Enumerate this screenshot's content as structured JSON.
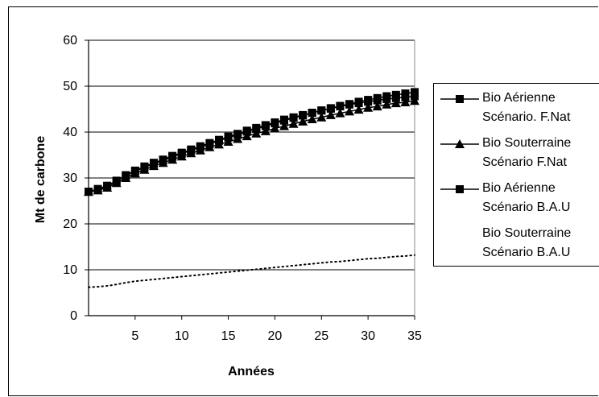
{
  "chart_data": {
    "type": "line",
    "ylabel": "Mt de carbone",
    "xlabel": "Années",
    "xlim": [
      0,
      35
    ],
    "ylim": [
      0,
      60
    ],
    "x_ticks": [
      "5",
      "10",
      "15",
      "20",
      "25",
      "30",
      "35"
    ],
    "y_ticks": [
      "0",
      "10",
      "20",
      "30",
      "40",
      "50",
      "60"
    ],
    "grid": "horizontal",
    "legend_position": "right",
    "x": [
      0,
      1,
      2,
      3,
      4,
      5,
      6,
      7,
      8,
      9,
      10,
      11,
      12,
      13,
      14,
      15,
      16,
      17,
      18,
      19,
      20,
      21,
      22,
      23,
      24,
      25,
      26,
      27,
      28,
      29,
      30,
      31,
      32,
      33,
      34,
      35
    ],
    "series": [
      {
        "name_line1": "Bio Aérienne",
        "name_line2": "Scénario. F.Nat",
        "marker": "square",
        "color": "#000000",
        "values": [
          27.0,
          27.5,
          28.2,
          29.3,
          30.5,
          31.5,
          32.3,
          33.1,
          33.8,
          34.6,
          35.3,
          36.0,
          36.7,
          37.4,
          38.1,
          38.8,
          39.4,
          40.1,
          40.7,
          41.3,
          41.9,
          42.5,
          43.1,
          43.6,
          44.2,
          44.7,
          45.2,
          45.7,
          46.1,
          46.6,
          47.0,
          47.4,
          47.8,
          48.1,
          48.4,
          48.7
        ]
      },
      {
        "name_line1": "Bio Souterraine",
        "name_line2": "Scénario F.Nat",
        "marker": "triangle",
        "color": "#000000",
        "values": [
          27.0,
          27.3,
          27.9,
          28.9,
          30.0,
          31.0,
          31.8,
          32.6,
          33.3,
          34.0,
          34.7,
          35.4,
          36.0,
          36.7,
          37.3,
          37.9,
          38.5,
          39.1,
          39.7,
          40.2,
          40.8,
          41.3,
          41.8,
          42.3,
          42.8,
          43.2,
          43.7,
          44.1,
          44.5,
          44.9,
          45.3,
          45.6,
          46.0,
          46.3,
          46.5,
          46.8
        ]
      },
      {
        "name_line1": "Bio Aérienne",
        "name_line2": "Scénario B.A.U",
        "marker": "square",
        "color": "#000000",
        "values": [
          27.0,
          27.6,
          28.3,
          29.4,
          30.6,
          31.6,
          32.5,
          33.3,
          34.0,
          34.8,
          35.5,
          36.2,
          36.9,
          37.6,
          38.3,
          39.0,
          39.6,
          40.3,
          40.9,
          41.5,
          42.1,
          42.7,
          43.2,
          43.7,
          44.2,
          44.7,
          45.1,
          45.6,
          46.0,
          46.3,
          46.6,
          46.9,
          47.2,
          47.4,
          47.6,
          47.8
        ]
      },
      {
        "name_line1": "Bio Souterraine",
        "name_line2": "Scénario B.A.U",
        "marker": "dot",
        "color": "#000000",
        "values": [
          6.2,
          6.3,
          6.5,
          6.8,
          7.2,
          7.5,
          7.7,
          7.9,
          8.1,
          8.3,
          8.5,
          8.7,
          8.9,
          9.1,
          9.3,
          9.5,
          9.7,
          9.9,
          10.1,
          10.3,
          10.5,
          10.7,
          10.9,
          11.1,
          11.3,
          11.5,
          11.7,
          11.8,
          12.0,
          12.2,
          12.4,
          12.5,
          12.7,
          12.9,
          13.0,
          13.2
        ]
      }
    ]
  }
}
